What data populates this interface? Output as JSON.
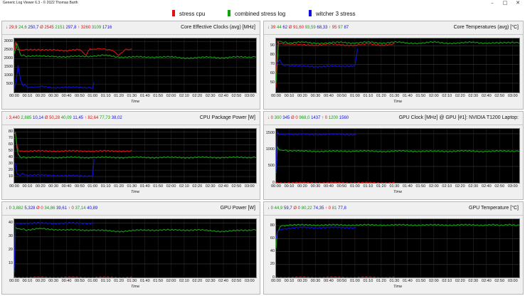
{
  "app": {
    "title": "Generic Log Viewer 6.3 - © 2022 Thomas Barth"
  },
  "window_controls": {
    "minimize": "–",
    "maximize": "□",
    "close": "✕"
  },
  "legend": [
    {
      "label": "stress cpu",
      "color": "#e01010"
    },
    {
      "label": "combined stress log",
      "color": "#10a010"
    },
    {
      "label": "witcher 3 stress",
      "color": "#1010e0"
    }
  ],
  "x_axis": {
    "title": "Time",
    "ticks": [
      "00:00",
      "00:10",
      "00:20",
      "00:30",
      "00:40",
      "00:50",
      "01:00",
      "01:10",
      "01:20",
      "01:30",
      "01:40",
      "01:50",
      "02:00",
      "02:10",
      "02:20",
      "02:30",
      "02:40",
      "02:50",
      "03:00"
    ]
  },
  "colors": {
    "red": "#e01010",
    "green": "#10a010",
    "blue": "#1010e0"
  },
  "panels": [
    {
      "title": "Core Effective Clocks (avg) [MHz]",
      "stats": [
        {
          "text": "↓ 29,9",
          "color": "#e01010"
        },
        {
          "text": " 24,6",
          "color": "#10a010"
        },
        {
          "text": " 250,7",
          "color": "#1010e0"
        },
        {
          "text": "   Ø 2545",
          "color": "#e01010"
        },
        {
          "text": " 2151",
          "color": "#10a010"
        },
        {
          "text": " 297,8",
          "color": "#1010e0"
        },
        {
          "text": "   ↑ 3260",
          "color": "#e01010"
        },
        {
          "text": " 3109",
          "color": "#10a010"
        },
        {
          "text": " 1716",
          "color": "#1010e0"
        }
      ],
      "y_ticks": [
        "3000",
        "2500",
        "2000",
        "1500",
        "1000",
        "500"
      ]
    },
    {
      "title": "Core Temperatures (avg) [°C]",
      "stats": [
        {
          "text": "↓ 39",
          "color": "#e01010"
        },
        {
          "text": " 44",
          "color": "#10a010"
        },
        {
          "text": " 62",
          "color": "#1010e0"
        },
        {
          "text": "   Ø 91,60",
          "color": "#e01010"
        },
        {
          "text": " 93,59",
          "color": "#10a010"
        },
        {
          "text": " 68,33",
          "color": "#1010e0"
        },
        {
          "text": "   ↑ 95",
          "color": "#e01010"
        },
        {
          "text": " 97",
          "color": "#10a010"
        },
        {
          "text": " 87",
          "color": "#1010e0"
        }
      ],
      "y_ticks": [
        "90",
        "80",
        "70",
        "60",
        "50"
      ]
    },
    {
      "title": "CPU Package Power [W]",
      "stats": [
        {
          "text": "↓ 3,440",
          "color": "#e01010"
        },
        {
          "text": " 2,885",
          "color": "#10a010"
        },
        {
          "text": " 10,14",
          "color": "#1010e0"
        },
        {
          "text": "   Ø 50,28",
          "color": "#e01010"
        },
        {
          "text": " 40,09",
          "color": "#10a010"
        },
        {
          "text": " 11,45",
          "color": "#1010e0"
        },
        {
          "text": "   ↑ 82,64",
          "color": "#e01010"
        },
        {
          "text": " 77,73",
          "color": "#10a010"
        },
        {
          "text": " 38,02",
          "color": "#1010e0"
        }
      ],
      "y_ticks": [
        "80",
        "70",
        "60",
        "50",
        "40",
        "30",
        "20",
        "10"
      ]
    },
    {
      "title": "GPU Clock [MHz] @ GPU [#1]: NVIDIA T1200 Laptop:",
      "stats": [
        {
          "text": "↓ 0",
          "color": "#e01010"
        },
        {
          "text": " 300",
          "color": "#10a010"
        },
        {
          "text": " 345",
          "color": "#1010e0"
        },
        {
          "text": "   Ø 0",
          "color": "#e01010"
        },
        {
          "text": " 968,0",
          "color": "#10a010"
        },
        {
          "text": " 1437",
          "color": "#1010e0"
        },
        {
          "text": "   ↑ 0",
          "color": "#e01010"
        },
        {
          "text": " 1200",
          "color": "#10a010"
        },
        {
          "text": " 1560",
          "color": "#1010e0"
        }
      ],
      "y_ticks": [
        "1500",
        "1000",
        "500",
        "0"
      ]
    },
    {
      "title": "GPU Power [W]",
      "stats": [
        {
          "text": "↓ 0",
          "color": "#e01010"
        },
        {
          "text": " 3,882",
          "color": "#10a010"
        },
        {
          "text": " 5,328",
          "color": "#1010e0"
        },
        {
          "text": "   Ø 0",
          "color": "#e01010"
        },
        {
          "text": " 34,86",
          "color": "#10a010"
        },
        {
          "text": " 39,61",
          "color": "#1010e0"
        },
        {
          "text": "   ↑ 0",
          "color": "#e01010"
        },
        {
          "text": " 37,14",
          "color": "#10a010"
        },
        {
          "text": " 40,89",
          "color": "#1010e0"
        }
      ],
      "y_ticks": [
        "40",
        "30",
        "20",
        "10"
      ]
    },
    {
      "title": "GPU Temperature [°C]",
      "stats": [
        {
          "text": "↓ 0",
          "color": "#e01010"
        },
        {
          "text": " 44,9",
          "color": "#10a010"
        },
        {
          "text": " 59,7",
          "color": "#1010e0"
        },
        {
          "text": "   Ø 0",
          "color": "#e01010"
        },
        {
          "text": " 80,22",
          "color": "#10a010"
        },
        {
          "text": " 74,35",
          "color": "#1010e0"
        },
        {
          "text": "   ↑ 0",
          "color": "#e01010"
        },
        {
          "text": " 81",
          "color": "#10a010"
        },
        {
          "text": " 77,8",
          "color": "#1010e0"
        }
      ],
      "y_ticks": [
        "80",
        "60",
        "40",
        "20",
        "0"
      ]
    }
  ],
  "chart_data": [
    {
      "type": "line",
      "title": "Core Effective Clocks (avg) [MHz]",
      "xlabel": "Time",
      "ylabel": "",
      "ylim": [
        0,
        3200
      ],
      "xlim_minutes": [
        0,
        185
      ],
      "series": [
        {
          "name": "stress cpu",
          "color": "#e01010",
          "x": [
            0,
            1,
            2,
            5,
            10,
            20,
            30,
            40,
            50,
            55,
            58,
            60,
            65,
            70,
            75,
            80,
            85,
            90
          ],
          "y": [
            2500,
            3000,
            2600,
            2500,
            2550,
            2500,
            2550,
            2450,
            2550,
            2200,
            2600,
            2550,
            2600,
            2550,
            2500,
            2200,
            2550,
            2550
          ]
        },
        {
          "name": "combined stress log",
          "color": "#10a010",
          "x": [
            0,
            2,
            5,
            10,
            20,
            30,
            40,
            50,
            60,
            70,
            80,
            90,
            100,
            110,
            120,
            130,
            140,
            150,
            160,
            170,
            180,
            185
          ],
          "y": [
            2300,
            2900,
            2200,
            2150,
            2150,
            2150,
            2100,
            2150,
            2150,
            2200,
            2100,
            2100,
            2100,
            2100,
            2100,
            2050,
            2050,
            2100,
            2050,
            2100,
            2100,
            2100
          ]
        },
        {
          "name": "witcher 3 stress",
          "color": "#1010e0",
          "x": [
            0,
            1,
            3,
            5,
            7,
            8,
            10,
            15,
            20,
            30,
            40,
            50,
            58,
            60,
            61
          ],
          "y": [
            300,
            500,
            1600,
            700,
            400,
            500,
            300,
            300,
            350,
            300,
            300,
            300,
            300,
            250,
            600
          ]
        }
      ]
    },
    {
      "type": "line",
      "title": "Core Temperatures (avg) [°C]",
      "xlabel": "Time",
      "ylabel": "",
      "ylim": [
        40,
        98
      ],
      "xlim_minutes": [
        0,
        185
      ],
      "series": [
        {
          "name": "stress cpu",
          "color": "#e01010",
          "x": [
            0,
            1,
            2,
            5,
            10,
            20,
            30,
            40,
            50,
            60,
            70,
            80,
            90
          ],
          "y": [
            45,
            95,
            93,
            92,
            92,
            91,
            91,
            92,
            91,
            91,
            92,
            91,
            92
          ]
        },
        {
          "name": "combined stress log",
          "color": "#10a010",
          "x": [
            0,
            2,
            5,
            10,
            20,
            30,
            40,
            50,
            60,
            70,
            80,
            90,
            100,
            110,
            120,
            130,
            140,
            150,
            160,
            170,
            180,
            185
          ],
          "y": [
            50,
            95,
            94,
            93,
            94,
            93,
            93,
            94,
            93,
            94,
            93,
            94,
            93,
            93,
            94,
            93,
            93,
            94,
            93,
            93,
            94,
            93
          ]
        },
        {
          "name": "witcher 3 stress",
          "color": "#1010e0",
          "x": [
            0,
            1,
            3,
            5,
            7,
            10,
            20,
            30,
            40,
            50,
            60,
            61,
            62
          ],
          "y": [
            70,
            72,
            75,
            70,
            69,
            69,
            68,
            68,
            68,
            68,
            69,
            78,
            87
          ]
        }
      ]
    },
    {
      "type": "line",
      "title": "CPU Package Power [W]",
      "xlabel": "Time",
      "ylabel": "",
      "ylim": [
        0,
        85
      ],
      "xlim_minutes": [
        0,
        185
      ],
      "series": [
        {
          "name": "stress cpu",
          "color": "#e01010",
          "x": [
            0,
            1,
            2,
            3,
            5,
            10,
            20,
            30,
            40,
            50,
            60,
            70,
            80,
            90
          ],
          "y": [
            80,
            80,
            60,
            52,
            50,
            50,
            50,
            50,
            50,
            50,
            50,
            50,
            50,
            50
          ]
        },
        {
          "name": "combined stress log",
          "color": "#10a010",
          "x": [
            0,
            1,
            2,
            3,
            5,
            10,
            20,
            40,
            60,
            80,
            100,
            120,
            140,
            160,
            180,
            185
          ],
          "y": [
            78,
            78,
            55,
            45,
            40,
            40,
            40,
            40,
            40,
            40,
            40,
            40,
            40,
            40,
            40,
            40
          ]
        },
        {
          "name": "witcher 3 stress",
          "color": "#1010e0",
          "x": [
            0,
            1,
            2,
            4,
            6,
            10,
            20,
            30,
            40,
            50,
            58,
            60,
            61
          ],
          "y": [
            30,
            30,
            15,
            12,
            15,
            12,
            12,
            12,
            11,
            11,
            11,
            11,
            38
          ]
        }
      ]
    },
    {
      "type": "line",
      "title": "GPU Clock [MHz] @ GPU [#1]: NVIDIA T1200 Laptop:",
      "xlabel": "Time",
      "ylabel": "",
      "ylim": [
        0,
        1650
      ],
      "xlim_minutes": [
        0,
        185
      ],
      "series": [
        {
          "name": "stress cpu",
          "color": "#e01010",
          "x": [
            0,
            90
          ],
          "y": [
            0,
            0
          ]
        },
        {
          "name": "combined stress log",
          "color": "#10a010",
          "x": [
            0,
            1,
            3,
            10,
            20,
            40,
            60,
            80,
            100,
            120,
            140,
            160,
            180,
            185
          ],
          "y": [
            300,
            1100,
            1000,
            980,
            970,
            960,
            970,
            960,
            970,
            960,
            970,
            960,
            970,
            960
          ]
        },
        {
          "name": "witcher 3 stress",
          "color": "#1010e0",
          "x": [
            0,
            1,
            2,
            5,
            20,
            40,
            60,
            61
          ],
          "y": [
            345,
            1560,
            1480,
            1480,
            1480,
            1480,
            1480,
            1480
          ]
        }
      ]
    },
    {
      "type": "line",
      "title": "GPU Power [W]",
      "xlabel": "Time",
      "ylabel": "",
      "ylim": [
        0,
        43
      ],
      "xlim_minutes": [
        0,
        185
      ],
      "series": [
        {
          "name": "stress cpu",
          "color": "#e01010",
          "x": [
            0,
            90
          ],
          "y": [
            0,
            0
          ]
        },
        {
          "name": "combined stress log",
          "color": "#10a010",
          "x": [
            0,
            1,
            3,
            10,
            20,
            40,
            60,
            80,
            100,
            120,
            140,
            160,
            180,
            185
          ],
          "y": [
            4,
            37,
            36,
            35,
            36,
            35,
            35,
            34,
            35,
            35,
            35,
            34,
            35,
            35
          ]
        },
        {
          "name": "witcher 3 stress",
          "color": "#1010e0",
          "x": [
            0,
            1,
            2,
            10,
            30,
            50,
            60,
            61
          ],
          "y": [
            5,
            40,
            40,
            40,
            40,
            40,
            40,
            40
          ]
        }
      ]
    },
    {
      "type": "line",
      "title": "GPU Temperature [°C]",
      "xlabel": "Time",
      "ylabel": "",
      "ylim": [
        0,
        90
      ],
      "xlim_minutes": [
        0,
        185
      ],
      "series": [
        {
          "name": "stress cpu",
          "color": "#e01010",
          "x": [
            0,
            90
          ],
          "y": [
            0,
            0
          ]
        },
        {
          "name": "combined stress log",
          "color": "#10a010",
          "x": [
            0,
            1,
            3,
            6,
            10,
            40,
            80,
            120,
            160,
            185
          ],
          "y": [
            45,
            70,
            78,
            80,
            81,
            81,
            81,
            81,
            81,
            81
          ]
        },
        {
          "name": "witcher 3 stress",
          "color": "#1010e0",
          "x": [
            0,
            1,
            3,
            6,
            10,
            20,
            40,
            60,
            61
          ],
          "y": [
            60,
            70,
            74,
            75,
            76,
            77,
            77,
            77,
            77
          ]
        }
      ]
    }
  ]
}
